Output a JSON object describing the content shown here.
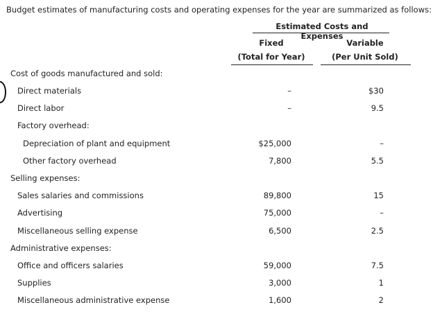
{
  "intro": "Budget estimates of manufacturing costs and operating expenses for the year are summarized as follows:",
  "header": {
    "group_title": "Estimated Costs and Expenses",
    "fixed_line1": "Fixed",
    "fixed_line2": "(Total for Year)",
    "variable_line1": "Variable",
    "variable_line2": "(Per Unit Sold)"
  },
  "rows": [
    {
      "label": "Cost of goods manufactured and sold:",
      "fixed": "",
      "variable": ""
    },
    {
      "label": "Direct materials",
      "fixed": "–",
      "variable": "$30"
    },
    {
      "label": "Direct labor",
      "fixed": "–",
      "variable": "9.5"
    },
    {
      "label": "Factory overhead:",
      "fixed": "",
      "variable": ""
    },
    {
      "label": "Depreciation of plant and equipment",
      "fixed": "$25,000",
      "variable": "–"
    },
    {
      "label": "Other factory overhead",
      "fixed": "7,800",
      "variable": "5.5"
    },
    {
      "label": "Selling expenses:",
      "fixed": "",
      "variable": ""
    },
    {
      "label": "Sales salaries and commissions",
      "fixed": "89,800",
      "variable": "15"
    },
    {
      "label": "Advertising",
      "fixed": "75,000",
      "variable": "–"
    },
    {
      "label": "Miscellaneous selling expense",
      "fixed": "6,500",
      "variable": "2.5"
    },
    {
      "label": "Administrative expenses:",
      "fixed": "",
      "variable": ""
    },
    {
      "label": "Office and officers salaries",
      "fixed": "59,000",
      "variable": "7.5"
    },
    {
      "label": "Supplies",
      "fixed": "3,000",
      "variable": "1"
    },
    {
      "label": "Miscellaneous administrative expense",
      "fixed": "1,600",
      "variable": "2"
    }
  ]
}
